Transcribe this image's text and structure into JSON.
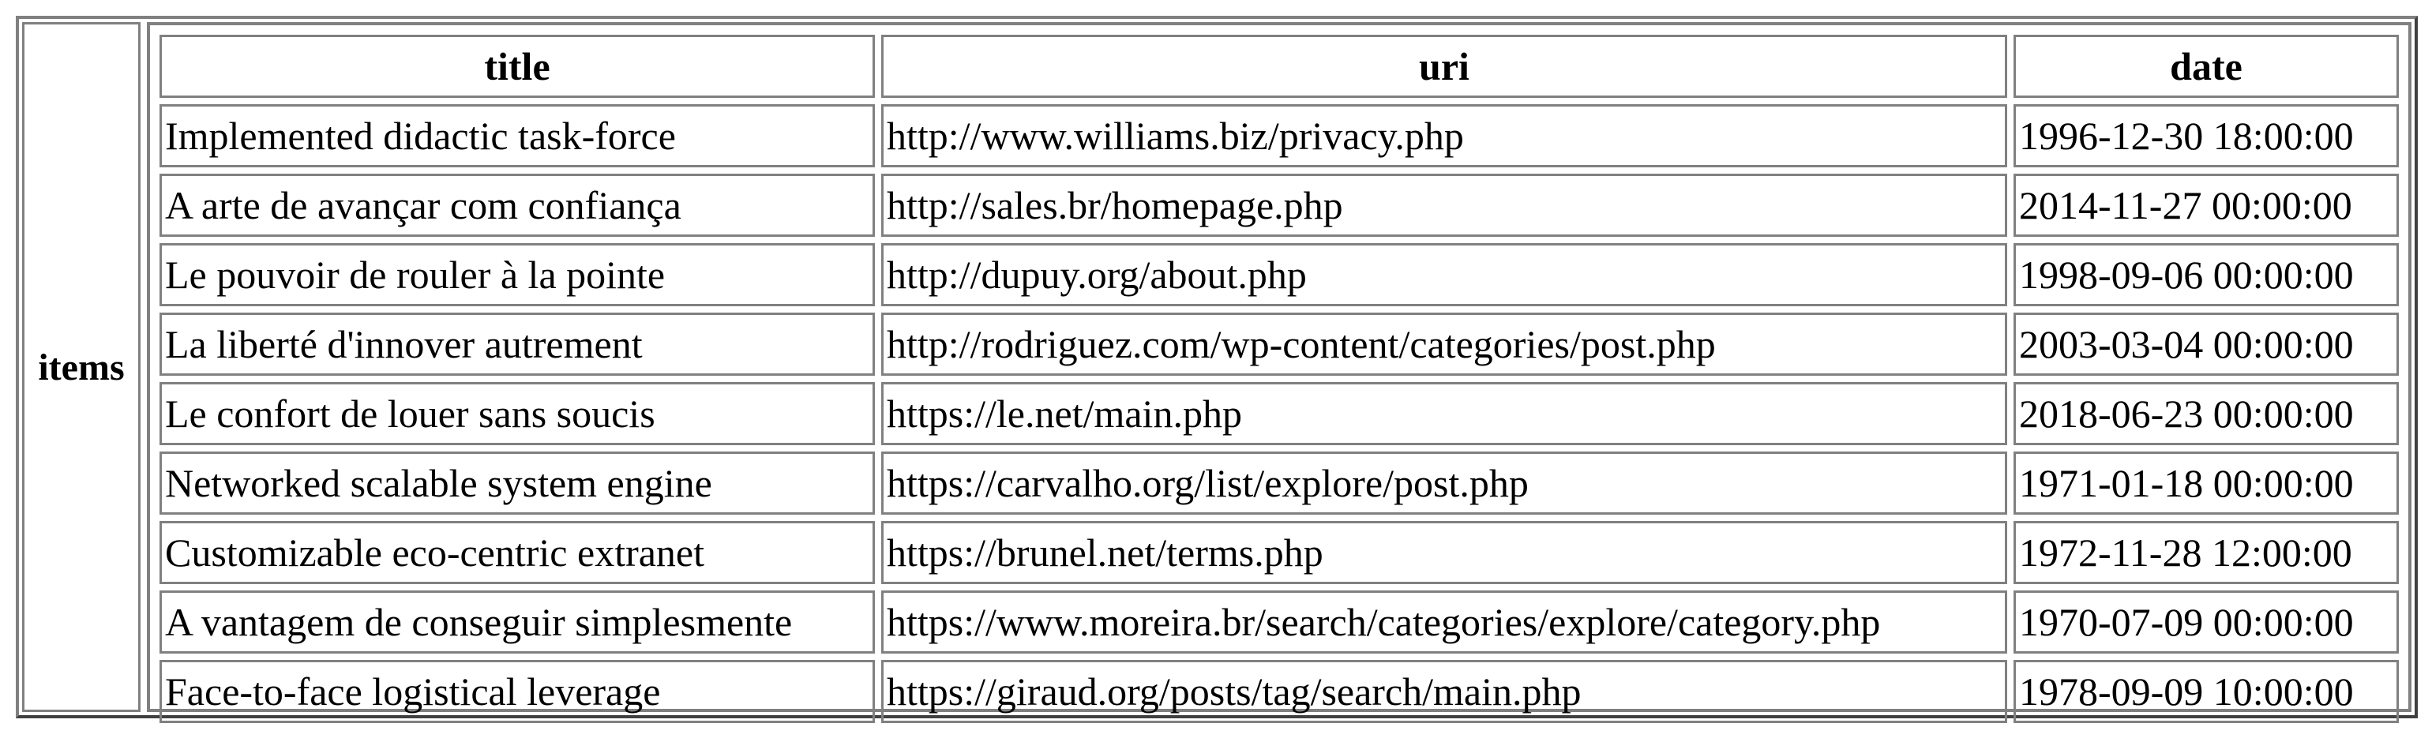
{
  "table": {
    "group_label": "items",
    "columns": [
      "title",
      "uri",
      "date"
    ],
    "rows": [
      {
        "title": "Implemented didactic task-force",
        "uri": "http://www.williams.biz/privacy.php",
        "date": "1996-12-30 18:00:00"
      },
      {
        "title": "A arte de avançar com confiança",
        "uri": "http://sales.br/homepage.php",
        "date": "2014-11-27 00:00:00"
      },
      {
        "title": "Le pouvoir de rouler à la pointe",
        "uri": "http://dupuy.org/about.php",
        "date": "1998-09-06 00:00:00"
      },
      {
        "title": "La liberté d'innover autrement",
        "uri": "http://rodriguez.com/wp-content/categories/post.php",
        "date": "2003-03-04 00:00:00"
      },
      {
        "title": "Le confort de louer sans soucis",
        "uri": "https://le.net/main.php",
        "date": "2018-06-23 00:00:00"
      },
      {
        "title": "Networked scalable system engine",
        "uri": "https://carvalho.org/list/explore/post.php",
        "date": "1971-01-18 00:00:00"
      },
      {
        "title": "Customizable eco-centric extranet",
        "uri": "https://brunel.net/terms.php",
        "date": "1972-11-28 12:00:00"
      },
      {
        "title": "A vantagem de conseguir simplesmente",
        "uri": "https://www.moreira.br/search/categories/explore/category.php",
        "date": "1970-07-09 00:00:00"
      },
      {
        "title": "Face-to-face logistical leverage",
        "uri": "https://giraud.org/posts/tag/search/main.php",
        "date": "1978-09-09 10:00:00"
      }
    ]
  }
}
